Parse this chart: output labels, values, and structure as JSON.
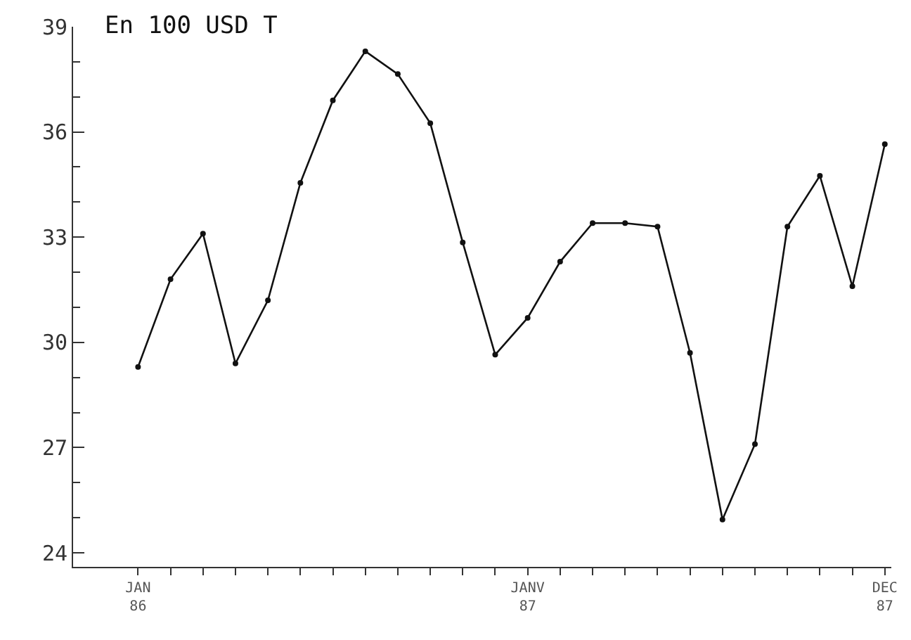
{
  "chart_data": {
    "type": "line",
    "title": "En 100 USD T",
    "categories": [
      "JAN 86",
      null,
      null,
      null,
      null,
      null,
      null,
      null,
      null,
      null,
      null,
      null,
      "JANV 87",
      null,
      null,
      null,
      null,
      null,
      null,
      null,
      null,
      null,
      null,
      "DEC 87"
    ],
    "series": [
      {
        "color": "#111111",
        "values": [
          29.3,
          31.8,
          33.1,
          29.4,
          31.2,
          34.55,
          36.9,
          38.3,
          37.65,
          36.25,
          32.85,
          29.65,
          30.7,
          32.3,
          33.4,
          33.4,
          33.3,
          29.7,
          24.95,
          27.1,
          33.3,
          34.75,
          31.6,
          35.65
        ]
      }
    ],
    "ylim": [
      23.6,
      39
    ],
    "yticks": [
      24,
      27,
      30,
      33,
      36,
      39
    ],
    "legend": false,
    "marker": "circle",
    "line_style": "solid"
  }
}
